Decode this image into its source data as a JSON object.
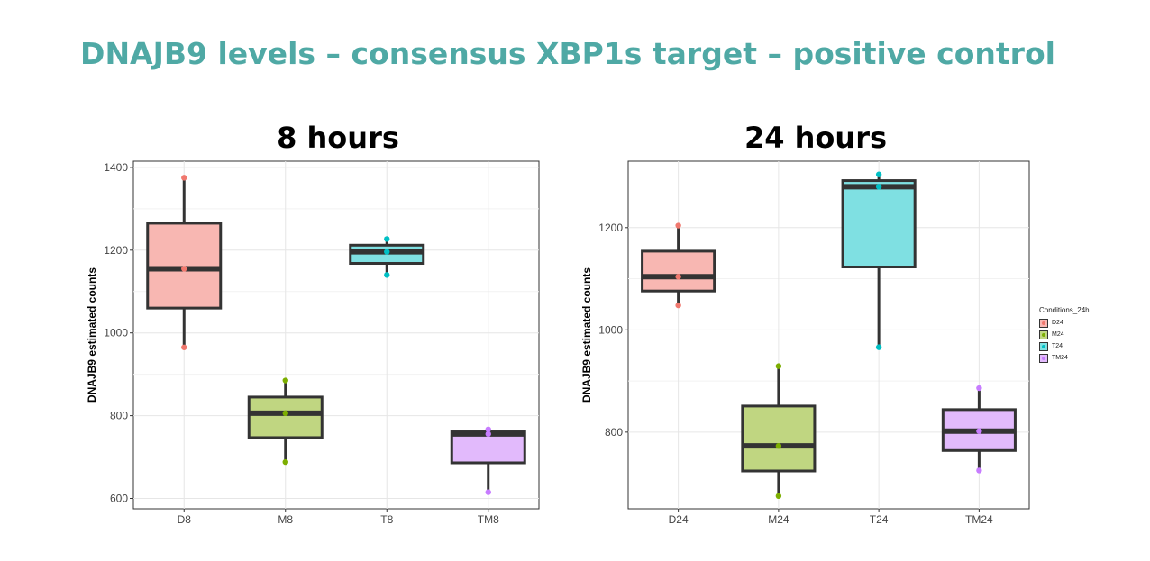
{
  "slide_title": "DNAJB9 levels – consensus XBP1s target – positive control",
  "legend": {
    "title": "Conditions_24h",
    "items": [
      {
        "label": "D24",
        "fill": "#f8b7b2",
        "dot": "#f0786e"
      },
      {
        "label": "M24",
        "fill": "#c0d681",
        "dot": "#7cae00"
      },
      {
        "label": "T24",
        "fill": "#7fe0e2",
        "dot": "#00bfc4"
      },
      {
        "label": "TM24",
        "fill": "#e2bafc",
        "dot": "#c77cff"
      }
    ]
  },
  "chart_data": [
    {
      "type": "box",
      "title": "8 hours",
      "xlabel": "",
      "ylabel": "DNAJB9 estimated counts",
      "ylim": [
        575,
        1415
      ],
      "yticks": [
        600,
        800,
        1000,
        1200,
        1400
      ],
      "grid": true,
      "categories": [
        "D8",
        "M8",
        "T8",
        "TM8"
      ],
      "boxes": [
        {
          "category": "D8",
          "min": 965,
          "q1": 1060,
          "median": 1155,
          "q3": 1265,
          "max": 1375,
          "points": [
            1375,
            1155,
            965
          ],
          "fill": "#f8b7b2",
          "dot": "#f0786e"
        },
        {
          "category": "M8",
          "min": 688,
          "q1": 747,
          "median": 806,
          "q3": 845,
          "max": 885,
          "points": [
            885,
            806,
            688
          ],
          "fill": "#c0d681",
          "dot": "#7cae00"
        },
        {
          "category": "T8",
          "min": 1140,
          "q1": 1168,
          "median": 1196,
          "q3": 1212,
          "max": 1227,
          "points": [
            1227,
            1196,
            1140
          ],
          "fill": "#7fe0e2",
          "dot": "#00bfc4"
        },
        {
          "category": "TM8",
          "min": 615,
          "q1": 686,
          "median": 756,
          "q3": 761,
          "max": 767,
          "points": [
            767,
            756,
            615
          ],
          "fill": "#e2bafc",
          "dot": "#c77cff"
        }
      ]
    },
    {
      "type": "box",
      "title": "24 hours",
      "xlabel": "",
      "ylabel": "DNAJB9 estimated counts",
      "ylim": [
        650,
        1330
      ],
      "yticks": [
        800,
        1000,
        1200
      ],
      "grid": true,
      "categories": [
        "D24",
        "M24",
        "T24",
        "TM24"
      ],
      "legend_title": "Conditions_24h",
      "legend_position": "right",
      "boxes": [
        {
          "category": "D24",
          "min": 1048,
          "q1": 1076,
          "median": 1104,
          "q3": 1154,
          "max": 1204,
          "points": [
            1204,
            1104,
            1048
          ],
          "fill": "#f8b7b2",
          "dot": "#f0786e"
        },
        {
          "category": "M24",
          "min": 675,
          "q1": 724,
          "median": 773,
          "q3": 851,
          "max": 929,
          "points": [
            929,
            773,
            675
          ],
          "fill": "#c0d681",
          "dot": "#7cae00"
        },
        {
          "category": "T24",
          "min": 966,
          "q1": 1123,
          "median": 1280,
          "q3": 1292,
          "max": 1304,
          "points": [
            1304,
            1280,
            966
          ],
          "fill": "#7fe0e2",
          "dot": "#00bfc4"
        },
        {
          "category": "TM24",
          "min": 725,
          "q1": 764,
          "median": 802,
          "q3": 844,
          "max": 886,
          "points": [
            886,
            802,
            725
          ],
          "fill": "#e2bafc",
          "dot": "#c77cff"
        }
      ]
    }
  ]
}
